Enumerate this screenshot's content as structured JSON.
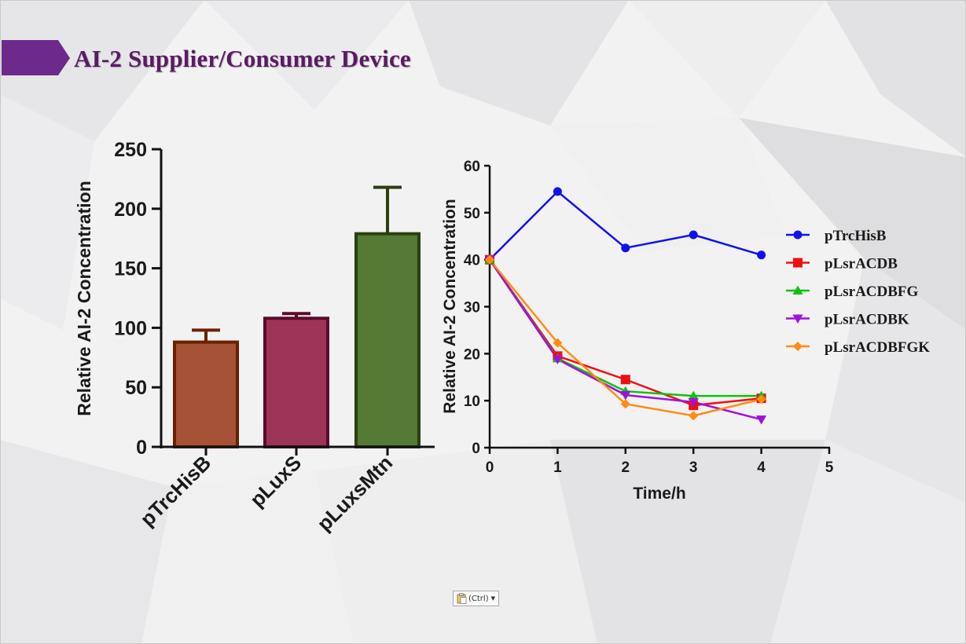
{
  "slide": {
    "title": "AI-2 Supplier/Consumer Device",
    "accent_color": "#6d2a8c",
    "title_color": "#5b1a63"
  },
  "paste_options": {
    "label": "(Ctrl)",
    "icon": "clipboard-icon"
  },
  "chart_data": [
    {
      "type": "bar",
      "title": "",
      "xlabel": "",
      "ylabel": "Relative AI-2 Concentration",
      "ylim": [
        0,
        250
      ],
      "yticks": [
        0,
        50,
        100,
        150,
        200,
        250
      ],
      "categories": [
        "pTrcHisB",
        "pLuxS",
        "pLuxsMtn"
      ],
      "values": [
        88,
        108,
        179
      ],
      "errors": [
        10,
        4,
        39
      ],
      "colors": [
        {
          "fill": "#a65236",
          "edge": "#6b2000"
        },
        {
          "fill": "#9c3458",
          "edge": "#5a0b2c"
        },
        {
          "fill": "#547a35",
          "edge": "#2a3f11"
        }
      ],
      "grid": false,
      "legend": "none"
    },
    {
      "type": "line",
      "title": "",
      "xlabel": "Time/h",
      "ylabel": "Relative AI-2 Concentration",
      "xlim": [
        0,
        5
      ],
      "ylim": [
        0,
        60
      ],
      "xticks": [
        0,
        1,
        2,
        3,
        4,
        5
      ],
      "yticks": [
        0,
        10,
        20,
        30,
        40,
        50,
        60
      ],
      "x": [
        0,
        1,
        2,
        3,
        4
      ],
      "series": [
        {
          "name": "pTrcHisB",
          "color": "#1010f0",
          "marker": "circle",
          "values": [
            40,
            54.5,
            42.5,
            45.3,
            41
          ]
        },
        {
          "name": "pLsrACDB",
          "color": "#ee1010",
          "marker": "square",
          "values": [
            40,
            19.5,
            14.5,
            9,
            10.5
          ]
        },
        {
          "name": "pLsrACDBFG",
          "color": "#10c010",
          "marker": "triangle-up",
          "values": [
            40,
            19,
            12,
            11,
            11
          ]
        },
        {
          "name": "pLsrACDBK",
          "color": "#a010e0",
          "marker": "triangle-down",
          "values": [
            40,
            18.8,
            11.2,
            9.7,
            6
          ]
        },
        {
          "name": "pLsrACDBFGK",
          "color": "#ff8c10",
          "marker": "diamond",
          "values": [
            40,
            22.3,
            9.3,
            6.8,
            10.3
          ]
        }
      ],
      "grid": false,
      "legend": "right"
    }
  ]
}
